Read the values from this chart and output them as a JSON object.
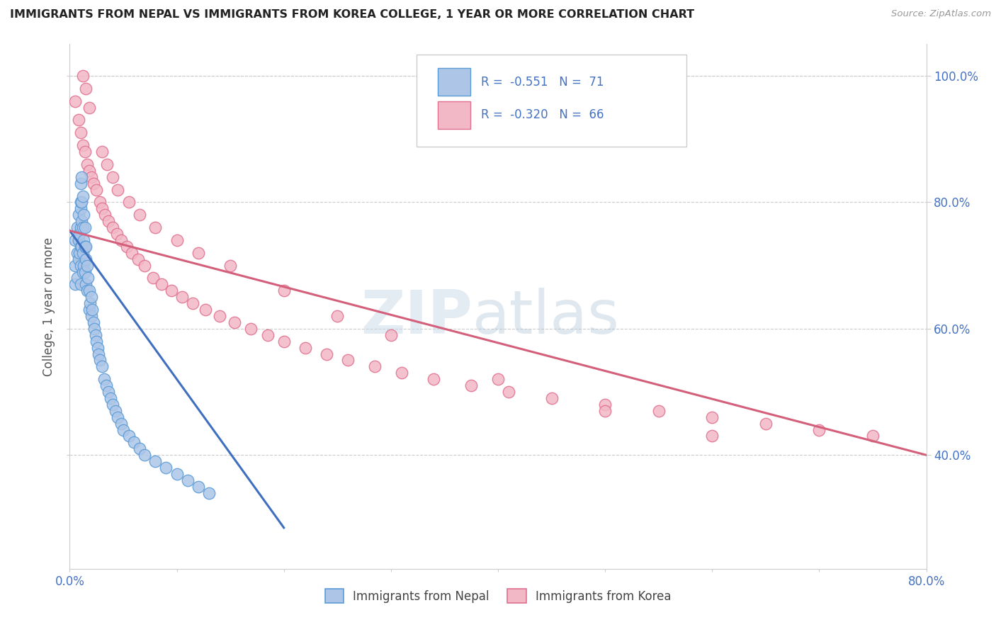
{
  "title": "IMMIGRANTS FROM NEPAL VS IMMIGRANTS FROM KOREA COLLEGE, 1 YEAR OR MORE CORRELATION CHART",
  "source": "Source: ZipAtlas.com",
  "ylabel": "College, 1 year or more",
  "xlim": [
    0.0,
    0.8
  ],
  "ylim": [
    0.22,
    1.05
  ],
  "xtick_positions": [
    0.0,
    0.1,
    0.2,
    0.3,
    0.4,
    0.5,
    0.6,
    0.7,
    0.8
  ],
  "xticklabels": [
    "0.0%",
    "",
    "",
    "",
    "",
    "",
    "",
    "",
    "80.0%"
  ],
  "ytick_positions": [
    0.4,
    0.6,
    0.8,
    1.0
  ],
  "yticklabels_right": [
    "40.0%",
    "60.0%",
    "80.0%",
    "100.0%"
  ],
  "legend_label1": "Immigrants from Nepal",
  "legend_label2": "Immigrants from Korea",
  "color_nepal_fill": "#adc6e8",
  "color_nepal_edge": "#5b9bd5",
  "color_korea_fill": "#f2b8c6",
  "color_korea_edge": "#e07090",
  "line_color_nepal": "#3f6fbf",
  "line_color_korea": "#d45f7a",
  "watermark_zip": "ZIP",
  "watermark_atlas": "atlas",
  "nepal_x": [
    0.005,
    0.005,
    0.005,
    0.007,
    0.007,
    0.007,
    0.008,
    0.008,
    0.008,
    0.009,
    0.009,
    0.01,
    0.01,
    0.01,
    0.01,
    0.01,
    0.011,
    0.011,
    0.012,
    0.012,
    0.012,
    0.013,
    0.013,
    0.014,
    0.014,
    0.015,
    0.015,
    0.016,
    0.016,
    0.017,
    0.018,
    0.018,
    0.019,
    0.02,
    0.02,
    0.021,
    0.022,
    0.023,
    0.024,
    0.025,
    0.026,
    0.027,
    0.028,
    0.03,
    0.032,
    0.034,
    0.036,
    0.038,
    0.04,
    0.043,
    0.045,
    0.048,
    0.05,
    0.055,
    0.06,
    0.065,
    0.07,
    0.08,
    0.09,
    0.1,
    0.11,
    0.12,
    0.13,
    0.01,
    0.01,
    0.011,
    0.011,
    0.012,
    0.013,
    0.014,
    0.015
  ],
  "nepal_y": [
    0.74,
    0.7,
    0.67,
    0.76,
    0.72,
    0.68,
    0.78,
    0.74,
    0.71,
    0.75,
    0.72,
    0.79,
    0.76,
    0.73,
    0.7,
    0.67,
    0.77,
    0.73,
    0.76,
    0.72,
    0.69,
    0.74,
    0.7,
    0.73,
    0.69,
    0.71,
    0.67,
    0.7,
    0.66,
    0.68,
    0.66,
    0.63,
    0.64,
    0.65,
    0.62,
    0.63,
    0.61,
    0.6,
    0.59,
    0.58,
    0.57,
    0.56,
    0.55,
    0.54,
    0.52,
    0.51,
    0.5,
    0.49,
    0.48,
    0.47,
    0.46,
    0.45,
    0.44,
    0.43,
    0.42,
    0.41,
    0.4,
    0.39,
    0.38,
    0.37,
    0.36,
    0.35,
    0.34,
    0.83,
    0.8,
    0.84,
    0.8,
    0.81,
    0.78,
    0.76,
    0.73
  ],
  "korea_x": [
    0.005,
    0.008,
    0.01,
    0.012,
    0.014,
    0.016,
    0.018,
    0.02,
    0.022,
    0.025,
    0.028,
    0.03,
    0.033,
    0.036,
    0.04,
    0.044,
    0.048,
    0.053,
    0.058,
    0.064,
    0.07,
    0.078,
    0.086,
    0.095,
    0.105,
    0.115,
    0.127,
    0.14,
    0.154,
    0.169,
    0.185,
    0.2,
    0.22,
    0.24,
    0.26,
    0.285,
    0.31,
    0.34,
    0.375,
    0.41,
    0.45,
    0.5,
    0.55,
    0.6,
    0.65,
    0.7,
    0.75,
    0.03,
    0.035,
    0.04,
    0.045,
    0.055,
    0.065,
    0.08,
    0.1,
    0.12,
    0.15,
    0.2,
    0.25,
    0.3,
    0.4,
    0.5,
    0.6,
    0.012,
    0.015,
    0.018
  ],
  "korea_y": [
    0.96,
    0.93,
    0.91,
    0.89,
    0.88,
    0.86,
    0.85,
    0.84,
    0.83,
    0.82,
    0.8,
    0.79,
    0.78,
    0.77,
    0.76,
    0.75,
    0.74,
    0.73,
    0.72,
    0.71,
    0.7,
    0.68,
    0.67,
    0.66,
    0.65,
    0.64,
    0.63,
    0.62,
    0.61,
    0.6,
    0.59,
    0.58,
    0.57,
    0.56,
    0.55,
    0.54,
    0.53,
    0.52,
    0.51,
    0.5,
    0.49,
    0.48,
    0.47,
    0.46,
    0.45,
    0.44,
    0.43,
    0.88,
    0.86,
    0.84,
    0.82,
    0.8,
    0.78,
    0.76,
    0.74,
    0.72,
    0.7,
    0.66,
    0.62,
    0.59,
    0.52,
    0.47,
    0.43,
    1.0,
    0.98,
    0.95
  ],
  "nepal_trend_x": [
    0.0,
    0.2
  ],
  "nepal_trend_y": [
    0.755,
    0.285
  ],
  "korea_trend_x": [
    0.0,
    0.8
  ],
  "korea_trend_y": [
    0.755,
    0.4
  ]
}
